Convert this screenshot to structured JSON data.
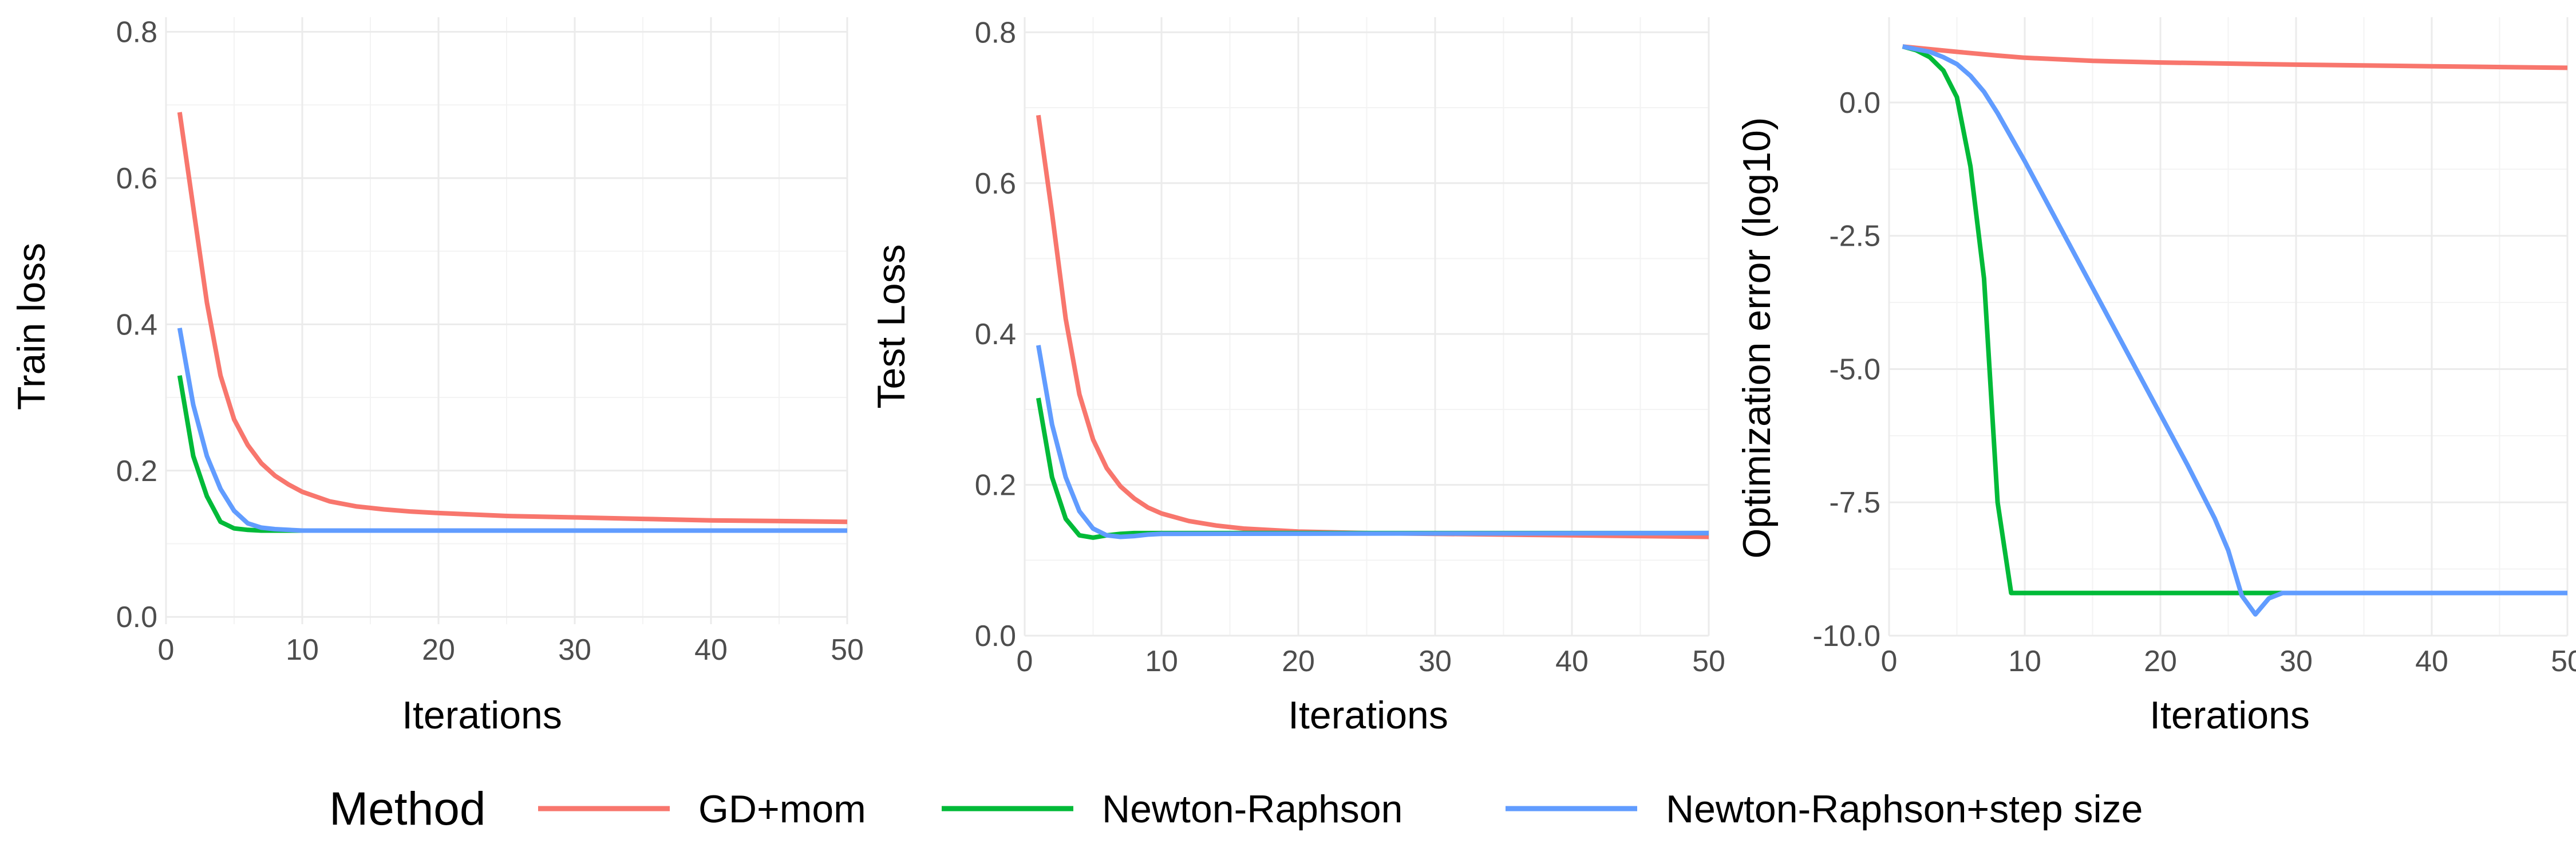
{
  "chart_data": [
    {
      "type": "line",
      "xlabel": "Iterations",
      "ylabel": "Train loss",
      "xlim": [
        0,
        50
      ],
      "ylim": [
        -0.01,
        0.82
      ],
      "xticks": [
        0,
        10,
        20,
        30,
        40,
        50
      ],
      "yticks": [
        0.0,
        0.2,
        0.4,
        0.6,
        0.8
      ],
      "ytick_labels": [
        "0.0",
        "0.2",
        "0.4",
        "0.6",
        "0.8"
      ],
      "grid": true,
      "series": [
        {
          "name": "GD+mom",
          "color": "#F8766D",
          "x": [
            1,
            2,
            3,
            4,
            5,
            6,
            7,
            8,
            9,
            10,
            12,
            14,
            16,
            18,
            20,
            25,
            30,
            35,
            40,
            45,
            50
          ],
          "y": [
            0.69,
            0.56,
            0.43,
            0.33,
            0.27,
            0.235,
            0.21,
            0.193,
            0.181,
            0.171,
            0.158,
            0.151,
            0.147,
            0.144,
            0.142,
            0.138,
            0.136,
            0.134,
            0.132,
            0.131,
            0.13
          ]
        },
        {
          "name": "Newton-Raphson",
          "color": "#00BA38",
          "x": [
            1,
            2,
            3,
            4,
            5,
            6,
            7,
            8,
            10,
            50
          ],
          "y": [
            0.33,
            0.22,
            0.165,
            0.13,
            0.121,
            0.119,
            0.118,
            0.118,
            0.118,
            0.118
          ]
        },
        {
          "name": "Newton-Raphson+step size",
          "color": "#619CFF",
          "x": [
            1,
            2,
            3,
            4,
            5,
            6,
            7,
            8,
            9,
            10,
            50
          ],
          "y": [
            0.395,
            0.29,
            0.22,
            0.175,
            0.145,
            0.128,
            0.122,
            0.12,
            0.119,
            0.118,
            0.118
          ]
        }
      ]
    },
    {
      "type": "line",
      "xlabel": "Iterations",
      "ylabel": "Test Loss",
      "xlim": [
        0,
        50
      ],
      "ylim": [
        0.0,
        0.82
      ],
      "xticks": [
        0,
        10,
        20,
        30,
        40,
        50
      ],
      "yticks": [
        0.0,
        0.2,
        0.4,
        0.6,
        0.8
      ],
      "ytick_labels": [
        "0.0",
        "0.2",
        "0.4",
        "0.6",
        "0.8"
      ],
      "grid": true,
      "series": [
        {
          "name": "GD+mom",
          "color": "#F8766D",
          "x": [
            1,
            2,
            3,
            4,
            5,
            6,
            7,
            8,
            9,
            10,
            12,
            14,
            16,
            18,
            20,
            25,
            30,
            35,
            40,
            45,
            50
          ],
          "y": [
            0.69,
            0.56,
            0.42,
            0.32,
            0.26,
            0.222,
            0.198,
            0.182,
            0.17,
            0.162,
            0.152,
            0.146,
            0.142,
            0.14,
            0.138,
            0.136,
            0.135,
            0.134,
            0.133,
            0.132,
            0.131
          ]
        },
        {
          "name": "Newton-Raphson",
          "color": "#00BA38",
          "x": [
            1,
            2,
            3,
            4,
            5,
            6,
            7,
            8,
            10,
            50
          ],
          "y": [
            0.315,
            0.21,
            0.155,
            0.133,
            0.13,
            0.133,
            0.135,
            0.136,
            0.136,
            0.136
          ]
        },
        {
          "name": "Newton-Raphson+step size",
          "color": "#619CFF",
          "x": [
            1,
            2,
            3,
            4,
            5,
            6,
            7,
            8,
            9,
            10,
            50
          ],
          "y": [
            0.385,
            0.28,
            0.21,
            0.165,
            0.142,
            0.133,
            0.131,
            0.132,
            0.134,
            0.135,
            0.136
          ]
        }
      ]
    },
    {
      "type": "line",
      "xlabel": "Iterations",
      "ylabel": "Optimization error (log10)",
      "xlim": [
        0,
        50
      ],
      "ylim": [
        -10.0,
        1.6
      ],
      "xticks": [
        0,
        10,
        20,
        30,
        40,
        50
      ],
      "yticks": [
        0.0,
        -2.5,
        -5.0,
        -7.5,
        -10.0
      ],
      "ytick_labels": [
        "0.0",
        "-2.5",
        "-5.0",
        "-7.5",
        "-10.0"
      ],
      "grid": true,
      "series": [
        {
          "name": "GD+mom",
          "color": "#F8766D",
          "x": [
            1,
            3,
            5,
            8,
            10,
            15,
            20,
            30,
            40,
            50
          ],
          "y": [
            1.05,
            1.0,
            0.95,
            0.88,
            0.84,
            0.78,
            0.75,
            0.71,
            0.68,
            0.65
          ]
        },
        {
          "name": "Newton-Raphson",
          "color": "#00BA38",
          "x": [
            1,
            2,
            3,
            4,
            5,
            6,
            7,
            8,
            9,
            10,
            20,
            30,
            40,
            50
          ],
          "y": [
            1.05,
            0.98,
            0.85,
            0.6,
            0.1,
            -1.2,
            -3.3,
            -7.5,
            -9.2,
            -9.2,
            -9.2,
            -9.2,
            -9.2,
            -9.2
          ]
        },
        {
          "name": "Newton-Raphson+step size",
          "color": "#619CFF",
          "x": [
            1,
            2,
            3,
            4,
            5,
            6,
            7,
            8,
            9,
            10,
            12,
            14,
            16,
            18,
            20,
            22,
            24,
            25,
            26,
            27,
            28,
            29,
            30,
            40,
            50
          ],
          "y": [
            1.05,
            1.0,
            0.95,
            0.85,
            0.72,
            0.5,
            0.2,
            -0.2,
            -0.65,
            -1.1,
            -2.05,
            -3.0,
            -3.95,
            -4.9,
            -5.85,
            -6.8,
            -7.8,
            -8.4,
            -9.25,
            -9.6,
            -9.3,
            -9.2,
            -9.2,
            -9.2,
            -9.2
          ]
        }
      ]
    }
  ],
  "legend": {
    "title": "Method",
    "entries": [
      {
        "label": "GD+mom",
        "color": "#F8766D"
      },
      {
        "label": "Newton-Raphson",
        "color": "#00BA38"
      },
      {
        "label": "Newton-Raphson+step size",
        "color": "#619CFF"
      }
    ]
  }
}
